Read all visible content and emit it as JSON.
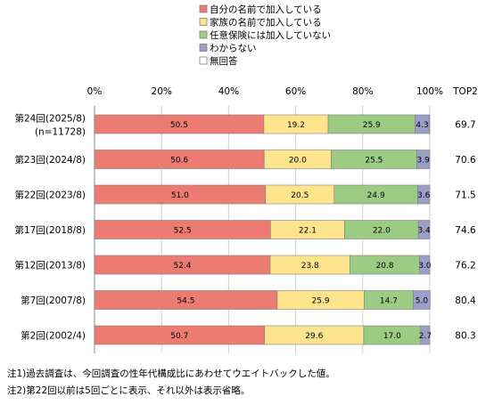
{
  "chart_data": {
    "type": "bar",
    "orientation": "horizontal",
    "stacked": true,
    "categories": [
      "第24回(2025/8)",
      "第23回(2024/8)",
      "第22回(2023/8)",
      "第17回(2018/8)",
      "第12回(2013/8)",
      "第7回(2007/8)",
      "第2回(2002/4)"
    ],
    "category_sublabels": [
      "(n=11728)",
      "",
      "",
      "",
      "",
      "",
      ""
    ],
    "series": [
      {
        "name": "自分の名前で加入している",
        "color": "#ec7b72",
        "values": [
          50.5,
          50.6,
          51.0,
          52.5,
          52.4,
          54.5,
          50.7
        ]
      },
      {
        "name": "家族の名前で加入している",
        "color": "#ffe48e",
        "values": [
          19.2,
          20.0,
          20.5,
          22.1,
          23.8,
          25.9,
          29.6
        ]
      },
      {
        "name": "任意保険には加入していない",
        "color": "#9ccb84",
        "values": [
          25.9,
          25.5,
          24.9,
          22.0,
          20.8,
          14.7,
          17.0
        ]
      },
      {
        "name": "わからない",
        "color": "#9b9ec6",
        "values": [
          4.3,
          3.9,
          3.6,
          3.4,
          3.0,
          5.0,
          2.7
        ]
      },
      {
        "name": "無回答",
        "color": "#ffffff",
        "values": [
          0.1,
          0,
          0,
          0,
          0,
          0,
          0
        ]
      }
    ],
    "xlim": [
      0,
      100
    ],
    "ticks": [
      "0%",
      "20%",
      "40%",
      "60%",
      "80%",
      "100%"
    ],
    "top2_header": "TOP2",
    "top2_values": [
      "69.7",
      "70.6",
      "71.5",
      "74.6",
      "76.2",
      "80.4",
      "80.3"
    ],
    "legend_position": "top-center",
    "grid": true
  },
  "notes": [
    "注1)過去調査は、今回調査の性年代構成比にあわせてウエイトバックした値。",
    "注2)第22回以前は5回ごとに表示、それ以外は表示省略。"
  ]
}
